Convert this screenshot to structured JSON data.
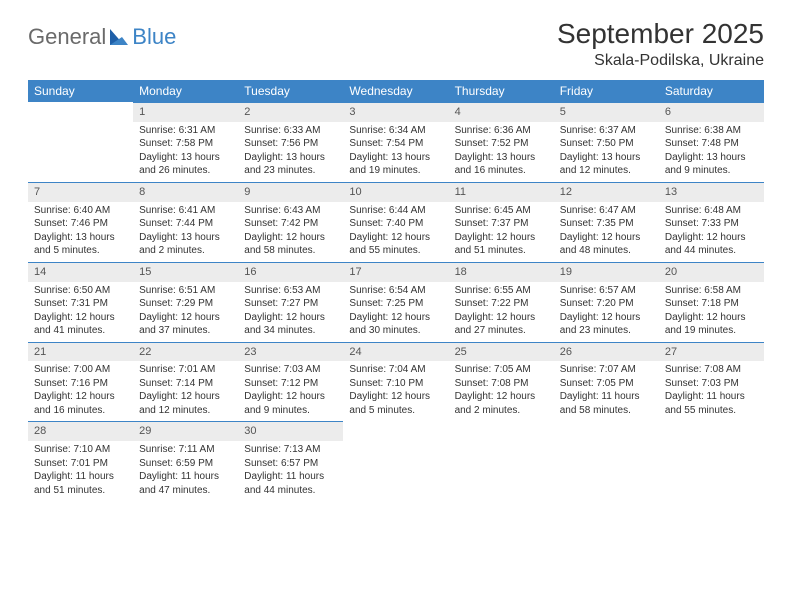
{
  "brand": {
    "general": "General",
    "blue": "Blue"
  },
  "title": "September 2025",
  "location": "Skala-Podilska, Ukraine",
  "colors": {
    "header_bg": "#3d84c6",
    "header_text": "#ffffff",
    "daynum_bg": "#ececec",
    "daynum_border": "#3d84c6",
    "page_bg": "#ffffff",
    "text": "#333333",
    "logo_gray": "#6a6a6a",
    "logo_blue": "#3d84c6"
  },
  "weekdays": [
    "Sunday",
    "Monday",
    "Tuesday",
    "Wednesday",
    "Thursday",
    "Friday",
    "Saturday"
  ],
  "weeks": [
    [
      null,
      {
        "n": "1",
        "sr": "Sunrise: 6:31 AM",
        "ss": "Sunset: 7:58 PM",
        "dl": "Daylight: 13 hours and 26 minutes."
      },
      {
        "n": "2",
        "sr": "Sunrise: 6:33 AM",
        "ss": "Sunset: 7:56 PM",
        "dl": "Daylight: 13 hours and 23 minutes."
      },
      {
        "n": "3",
        "sr": "Sunrise: 6:34 AM",
        "ss": "Sunset: 7:54 PM",
        "dl": "Daylight: 13 hours and 19 minutes."
      },
      {
        "n": "4",
        "sr": "Sunrise: 6:36 AM",
        "ss": "Sunset: 7:52 PM",
        "dl": "Daylight: 13 hours and 16 minutes."
      },
      {
        "n": "5",
        "sr": "Sunrise: 6:37 AM",
        "ss": "Sunset: 7:50 PM",
        "dl": "Daylight: 13 hours and 12 minutes."
      },
      {
        "n": "6",
        "sr": "Sunrise: 6:38 AM",
        "ss": "Sunset: 7:48 PM",
        "dl": "Daylight: 13 hours and 9 minutes."
      }
    ],
    [
      {
        "n": "7",
        "sr": "Sunrise: 6:40 AM",
        "ss": "Sunset: 7:46 PM",
        "dl": "Daylight: 13 hours and 5 minutes."
      },
      {
        "n": "8",
        "sr": "Sunrise: 6:41 AM",
        "ss": "Sunset: 7:44 PM",
        "dl": "Daylight: 13 hours and 2 minutes."
      },
      {
        "n": "9",
        "sr": "Sunrise: 6:43 AM",
        "ss": "Sunset: 7:42 PM",
        "dl": "Daylight: 12 hours and 58 minutes."
      },
      {
        "n": "10",
        "sr": "Sunrise: 6:44 AM",
        "ss": "Sunset: 7:40 PM",
        "dl": "Daylight: 12 hours and 55 minutes."
      },
      {
        "n": "11",
        "sr": "Sunrise: 6:45 AM",
        "ss": "Sunset: 7:37 PM",
        "dl": "Daylight: 12 hours and 51 minutes."
      },
      {
        "n": "12",
        "sr": "Sunrise: 6:47 AM",
        "ss": "Sunset: 7:35 PM",
        "dl": "Daylight: 12 hours and 48 minutes."
      },
      {
        "n": "13",
        "sr": "Sunrise: 6:48 AM",
        "ss": "Sunset: 7:33 PM",
        "dl": "Daylight: 12 hours and 44 minutes."
      }
    ],
    [
      {
        "n": "14",
        "sr": "Sunrise: 6:50 AM",
        "ss": "Sunset: 7:31 PM",
        "dl": "Daylight: 12 hours and 41 minutes."
      },
      {
        "n": "15",
        "sr": "Sunrise: 6:51 AM",
        "ss": "Sunset: 7:29 PM",
        "dl": "Daylight: 12 hours and 37 minutes."
      },
      {
        "n": "16",
        "sr": "Sunrise: 6:53 AM",
        "ss": "Sunset: 7:27 PM",
        "dl": "Daylight: 12 hours and 34 minutes."
      },
      {
        "n": "17",
        "sr": "Sunrise: 6:54 AM",
        "ss": "Sunset: 7:25 PM",
        "dl": "Daylight: 12 hours and 30 minutes."
      },
      {
        "n": "18",
        "sr": "Sunrise: 6:55 AM",
        "ss": "Sunset: 7:22 PM",
        "dl": "Daylight: 12 hours and 27 minutes."
      },
      {
        "n": "19",
        "sr": "Sunrise: 6:57 AM",
        "ss": "Sunset: 7:20 PM",
        "dl": "Daylight: 12 hours and 23 minutes."
      },
      {
        "n": "20",
        "sr": "Sunrise: 6:58 AM",
        "ss": "Sunset: 7:18 PM",
        "dl": "Daylight: 12 hours and 19 minutes."
      }
    ],
    [
      {
        "n": "21",
        "sr": "Sunrise: 7:00 AM",
        "ss": "Sunset: 7:16 PM",
        "dl": "Daylight: 12 hours and 16 minutes."
      },
      {
        "n": "22",
        "sr": "Sunrise: 7:01 AM",
        "ss": "Sunset: 7:14 PM",
        "dl": "Daylight: 12 hours and 12 minutes."
      },
      {
        "n": "23",
        "sr": "Sunrise: 7:03 AM",
        "ss": "Sunset: 7:12 PM",
        "dl": "Daylight: 12 hours and 9 minutes."
      },
      {
        "n": "24",
        "sr": "Sunrise: 7:04 AM",
        "ss": "Sunset: 7:10 PM",
        "dl": "Daylight: 12 hours and 5 minutes."
      },
      {
        "n": "25",
        "sr": "Sunrise: 7:05 AM",
        "ss": "Sunset: 7:08 PM",
        "dl": "Daylight: 12 hours and 2 minutes."
      },
      {
        "n": "26",
        "sr": "Sunrise: 7:07 AM",
        "ss": "Sunset: 7:05 PM",
        "dl": "Daylight: 11 hours and 58 minutes."
      },
      {
        "n": "27",
        "sr": "Sunrise: 7:08 AM",
        "ss": "Sunset: 7:03 PM",
        "dl": "Daylight: 11 hours and 55 minutes."
      }
    ],
    [
      {
        "n": "28",
        "sr": "Sunrise: 7:10 AM",
        "ss": "Sunset: 7:01 PM",
        "dl": "Daylight: 11 hours and 51 minutes."
      },
      {
        "n": "29",
        "sr": "Sunrise: 7:11 AM",
        "ss": "Sunset: 6:59 PM",
        "dl": "Daylight: 11 hours and 47 minutes."
      },
      {
        "n": "30",
        "sr": "Sunrise: 7:13 AM",
        "ss": "Sunset: 6:57 PM",
        "dl": "Daylight: 11 hours and 44 minutes."
      },
      null,
      null,
      null,
      null
    ]
  ]
}
